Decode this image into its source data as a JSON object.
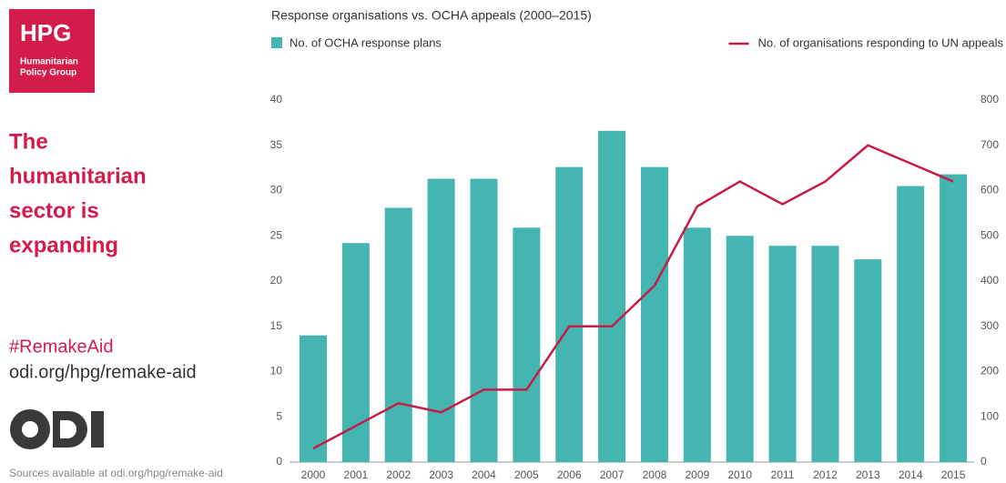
{
  "logo": {
    "title": "HPG",
    "line1": "Humanitarian",
    "line2": "Policy Group"
  },
  "headline": {
    "line1": "The",
    "line2": "humanitarian",
    "line3": "sector is",
    "line4": "expanding"
  },
  "hashtag": "#RemakeAid",
  "link": "odi.org/hpg/remake-aid",
  "sources": "Sources available at odi.org/hpg/remake-aid",
  "chart_data": {
    "type": "bar_line",
    "title": "Response organisations vs. OCHA appeals (2000–2015)",
    "categories": [
      "2000",
      "2001",
      "2002",
      "2003",
      "2004",
      "2005",
      "2006",
      "2007",
      "2008",
      "2009",
      "2010",
      "2011",
      "2012",
      "2013",
      "2014",
      "2015"
    ],
    "series": [
      {
        "name": "No. of OCHA response plans",
        "color": "#45b5b2",
        "type": "bar",
        "values": [
          14,
          24.2,
          28.1,
          31.3,
          31.3,
          25.9,
          32.6,
          36.6,
          32.6,
          25.9,
          25,
          23.9,
          23.9,
          22.4,
          30.5,
          31.8
        ]
      },
      {
        "name": "No. of organisations responding to UN appeals",
        "color": "#c41e45",
        "type": "line",
        "axis": "y2",
        "values": [
          30,
          80,
          130,
          110,
          160,
          160,
          300,
          300,
          390,
          565,
          620,
          570,
          620,
          700,
          660,
          620
        ]
      }
    ],
    "ylim": [
      0,
      40
    ],
    "yticks": [
      0,
      5,
      10,
      15,
      20,
      25,
      30,
      35,
      40
    ],
    "y2lim": [
      0,
      800
    ],
    "y2ticks": [
      0,
      100,
      200,
      300,
      400,
      500,
      600,
      700,
      800
    ],
    "grid": false
  }
}
